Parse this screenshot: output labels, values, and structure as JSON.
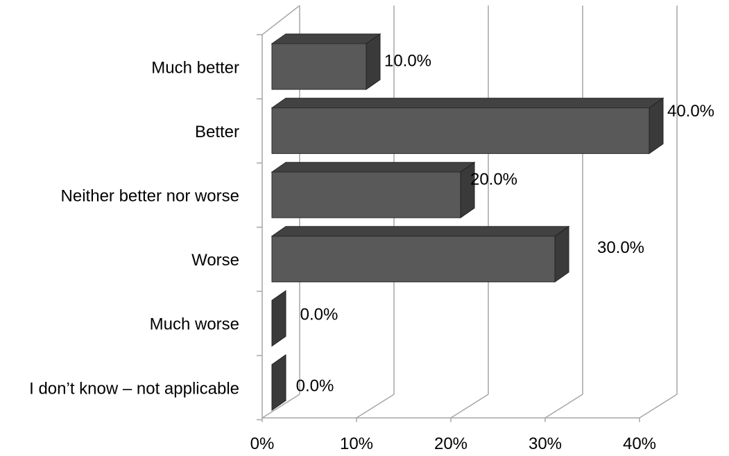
{
  "chart_data": {
    "type": "bar",
    "orientation": "horizontal",
    "style": "3d",
    "categories": [
      "Much better",
      "Better",
      "Neither better nor worse",
      "Worse",
      "Much worse",
      "I don’t know – not applicable"
    ],
    "values": [
      10.0,
      40.0,
      20.0,
      30.0,
      0.0,
      0.0
    ],
    "data_labels": [
      "10.0%",
      "40.0%",
      "20.0%",
      "30.0%",
      "0.0%",
      "0.0%"
    ],
    "x_ticks": [
      "0%",
      "10%",
      "20%",
      "30%",
      "40%"
    ],
    "xlim": [
      0,
      40
    ],
    "grid": true,
    "legend": "none",
    "title": "",
    "xlabel": "",
    "ylabel": "",
    "bar_color": "#595959",
    "bar_side_color": "#3a3a3a",
    "bar_top_color": "#424242",
    "grid_color": "#a6a6a6"
  }
}
